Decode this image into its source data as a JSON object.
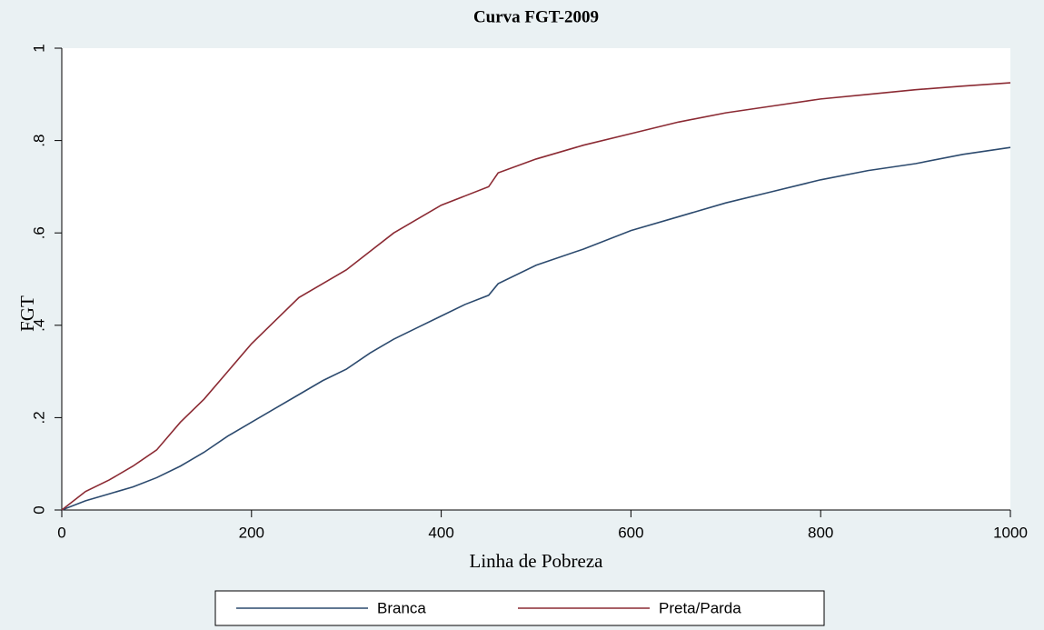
{
  "chart_data": {
    "type": "line",
    "title": "Curva FGT-2009",
    "xlabel": "Linha de Pobreza",
    "ylabel": "FGT",
    "x": [
      0,
      25,
      50,
      75,
      100,
      125,
      150,
      175,
      200,
      225,
      250,
      275,
      300,
      325,
      350,
      375,
      400,
      425,
      450,
      460,
      500,
      550,
      600,
      650,
      700,
      750,
      800,
      850,
      900,
      950,
      1000
    ],
    "series": [
      {
        "name": "Branca",
        "color": "#2c4a6e",
        "values": [
          0,
          0.02,
          0.035,
          0.05,
          0.07,
          0.095,
          0.125,
          0.16,
          0.19,
          0.22,
          0.25,
          0.28,
          0.305,
          0.34,
          0.37,
          0.395,
          0.42,
          0.445,
          0.465,
          0.49,
          0.53,
          0.565,
          0.605,
          0.635,
          0.665,
          0.69,
          0.715,
          0.735,
          0.75,
          0.77,
          0.785
        ]
      },
      {
        "name": "Preta/Parda",
        "color": "#8b2a33",
        "values": [
          0,
          0.04,
          0.065,
          0.095,
          0.13,
          0.19,
          0.24,
          0.3,
          0.36,
          0.41,
          0.46,
          0.49,
          0.52,
          0.56,
          0.6,
          0.63,
          0.66,
          0.68,
          0.7,
          0.73,
          0.76,
          0.79,
          0.815,
          0.84,
          0.86,
          0.875,
          0.89,
          0.9,
          0.91,
          0.918,
          0.925
        ]
      }
    ],
    "xlim": [
      0,
      1000
    ],
    "xticks": [
      0,
      200,
      400,
      600,
      800,
      1000
    ],
    "ylim": [
      0,
      1
    ],
    "yticks": [
      0,
      {
        "value": 0.2,
        "label": ".2"
      },
      {
        "value": 0.4,
        "label": ".4"
      },
      {
        "value": 0.6,
        "label": ".6"
      },
      {
        "value": 0.8,
        "label": ".8"
      },
      1
    ],
    "legend": "bottom"
  }
}
